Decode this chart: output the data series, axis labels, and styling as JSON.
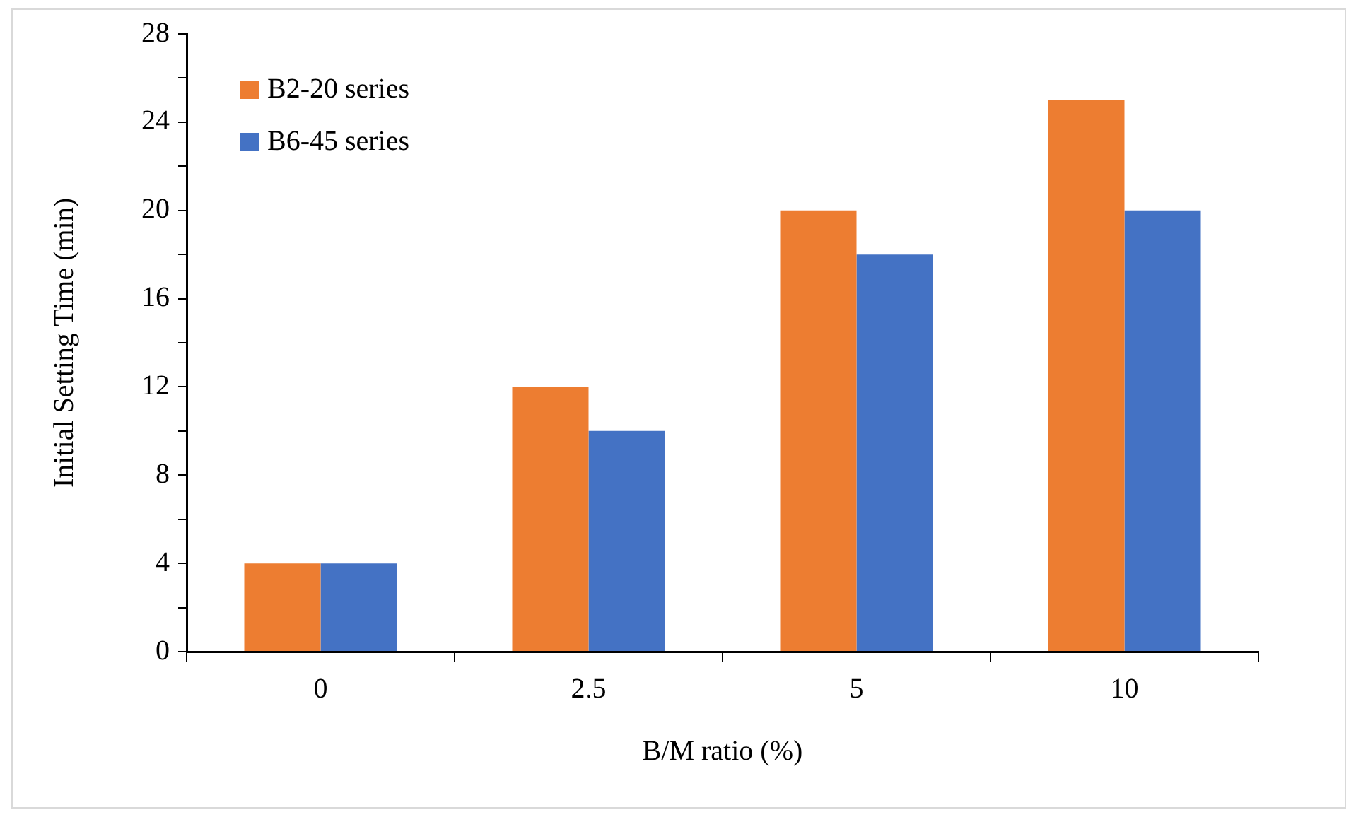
{
  "chart_data": {
    "type": "bar",
    "xlabel": "B/M ratio (%)",
    "ylabel": "Initial Setting Time (min)",
    "categories": [
      "0",
      "2.5",
      "5",
      "10"
    ],
    "series": [
      {
        "name": "B2-20 series",
        "color": "#ed7d31",
        "values": [
          4,
          12,
          20,
          25
        ]
      },
      {
        "name": "B6-45 series",
        "color": "#4472c4",
        "values": [
          4,
          10,
          18,
          20
        ]
      }
    ],
    "ylim": [
      0,
      28
    ],
    "yticks": [
      0,
      {
        "value": 2,
        "label": null
      },
      4,
      {
        "value": 6,
        "label": null
      },
      8,
      {
        "value": 10,
        "label": null
      },
      12,
      {
        "value": 14,
        "label": null
      },
      16,
      {
        "value": 18,
        "label": null
      },
      20,
      {
        "value": 22,
        "label": null
      },
      24,
      {
        "value": 26,
        "label": null
      },
      28
    ],
    "grid": false,
    "legend": "top left"
  }
}
